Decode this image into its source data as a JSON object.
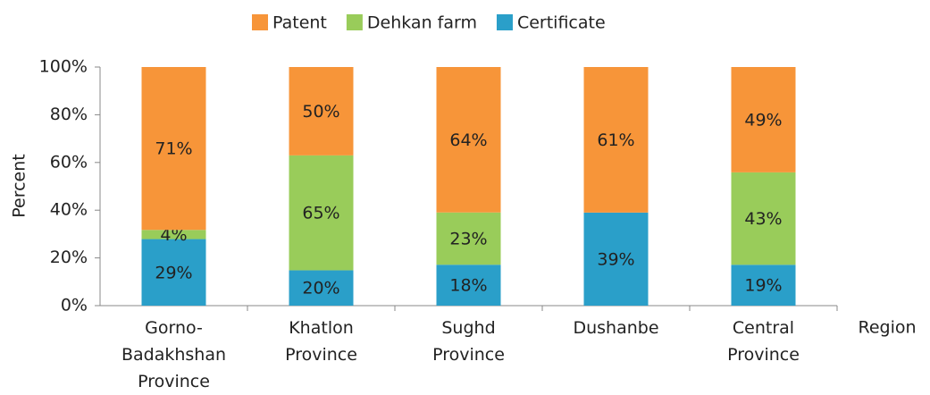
{
  "chart_data": {
    "type": "bar",
    "stacking": "percent",
    "y_label": "Percent",
    "x_label": "Region",
    "categories": [
      "Gorno-Badakhshan Province",
      "Khatlon Province",
      "Sughd Province",
      "Dushanbe",
      "Central Province"
    ],
    "series": [
      {
        "name": "Certificate",
        "color": "#2a9fc9",
        "values": [
          29,
          20,
          18,
          39,
          19
        ],
        "value_labels": [
          "29%",
          "20%",
          "18%",
          "39%",
          "19%"
        ]
      },
      {
        "name": "Dehkan farm",
        "color": "#99cc5a",
        "values": [
          4,
          65,
          23,
          null,
          43
        ],
        "value_labels": [
          "4%",
          "65%",
          "23%",
          null,
          "43%"
        ]
      },
      {
        "name": "Patent",
        "color": "#f79539",
        "values": [
          71,
          50,
          64,
          61,
          49
        ],
        "value_labels": [
          "71%",
          "50%",
          "64%",
          "61%",
          "49%"
        ]
      }
    ],
    "legend": "top",
    "ylim": [
      0,
      100
    ],
    "yticks": [
      {
        "value": 0,
        "label": "0%"
      },
      {
        "value": 20,
        "label": "20%"
      },
      {
        "value": 40,
        "label": "40%"
      },
      {
        "value": 60,
        "label": "60%"
      },
      {
        "value": 80,
        "label": "80%"
      },
      {
        "value": 100,
        "label": "100%"
      }
    ]
  }
}
